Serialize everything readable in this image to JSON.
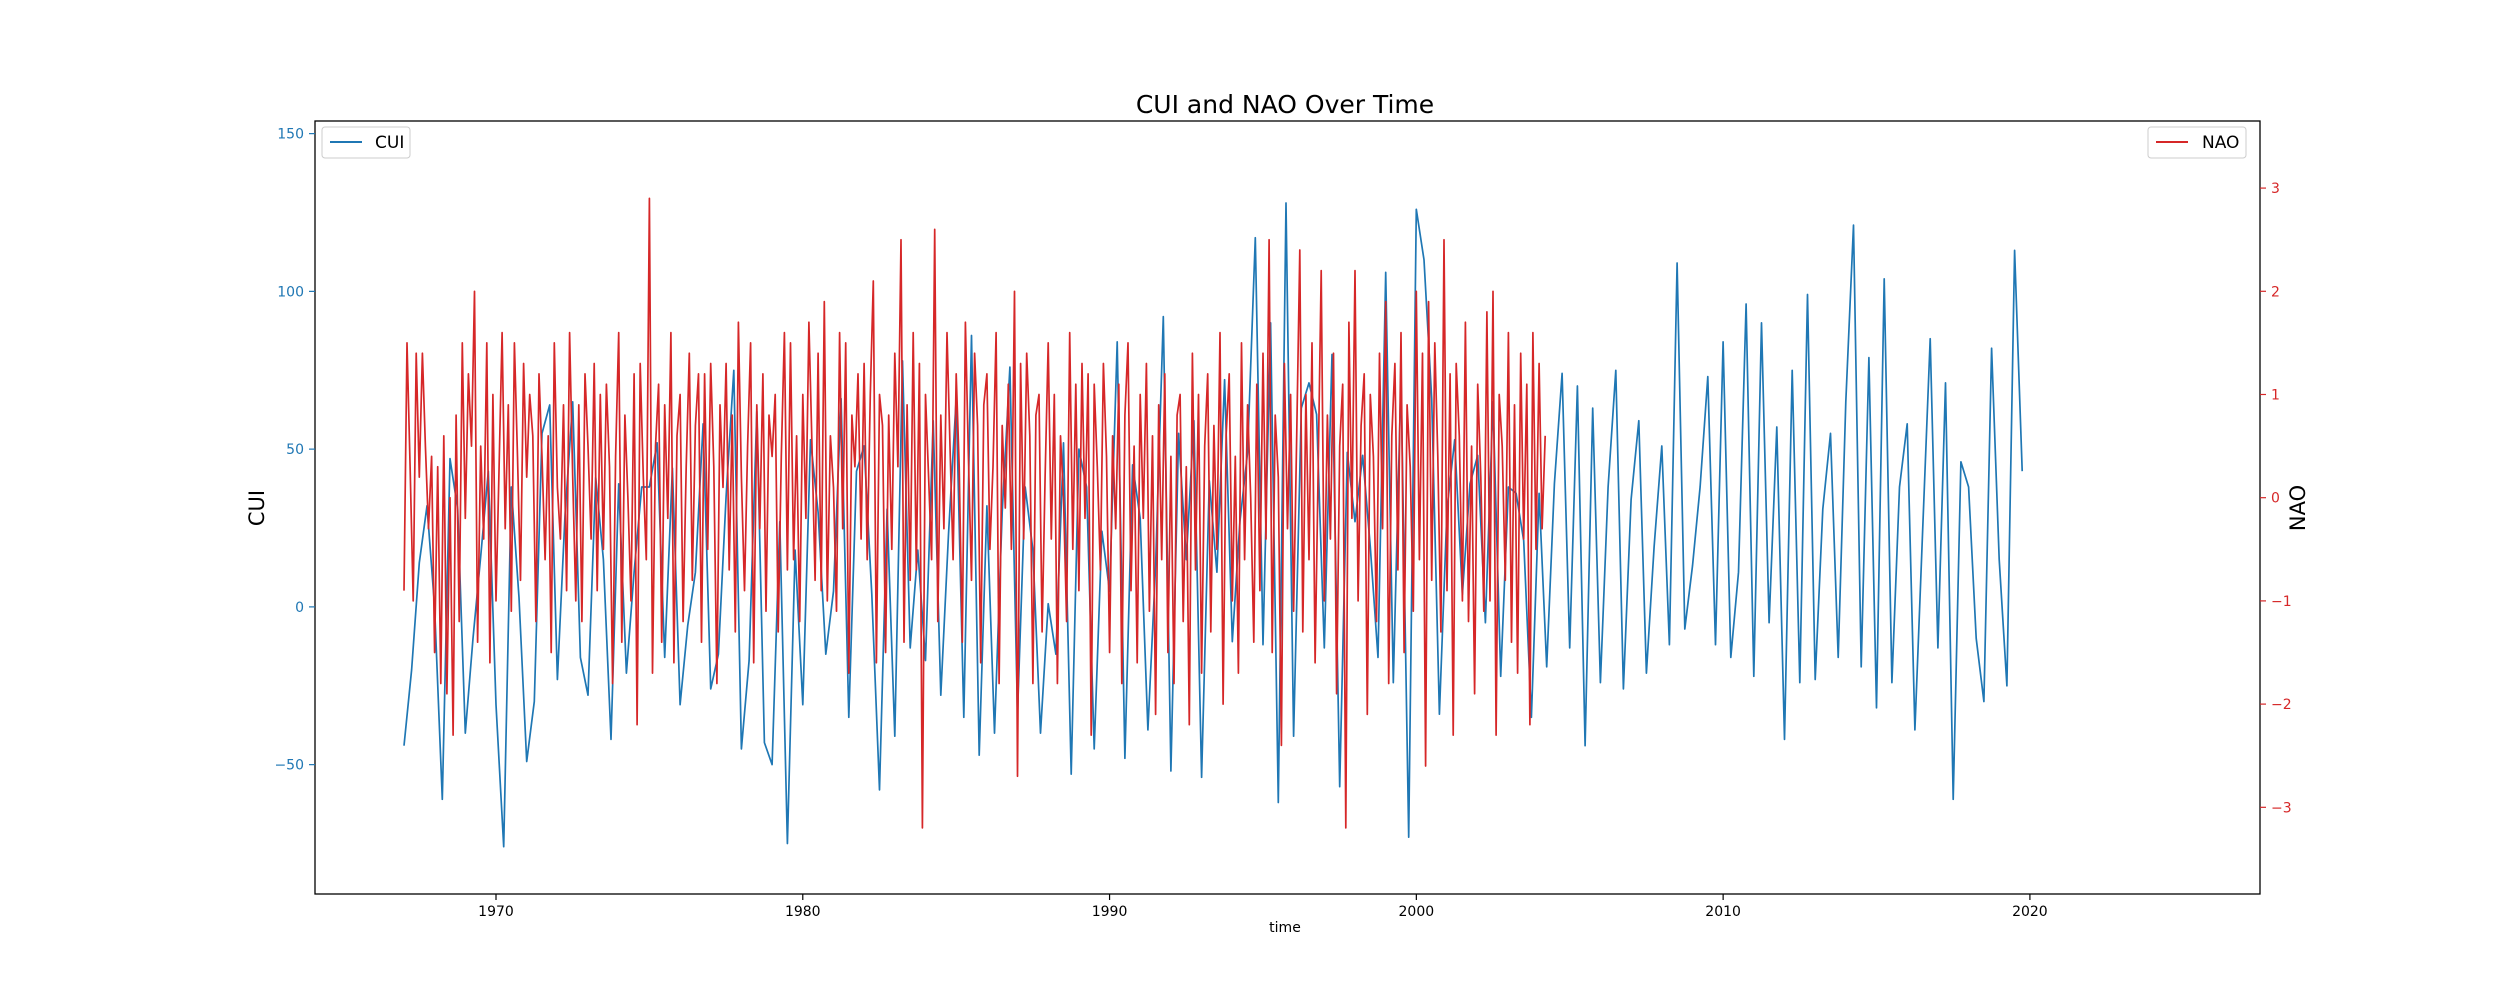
{
  "chart_data": {
    "type": "line",
    "title": "CUI and NAO Over Time",
    "xlabel": "time",
    "x_range": [
      1964.1,
      2027.5
    ],
    "x_ticks": [
      "1970",
      "1980",
      "1990",
      "2000",
      "2010",
      "2020"
    ],
    "left_axis": {
      "label": "CUI",
      "color": "#1f77b4",
      "ylim": [
        -91,
        154
      ],
      "ticks": [
        "150",
        "100",
        "50",
        "0",
        "−50"
      ]
    },
    "right_axis": {
      "label": "NAO",
      "color": "#d62728",
      "ylim": [
        -3.84,
        3.65
      ],
      "ticks": [
        "3",
        "2",
        "1",
        "0",
        "−1",
        "−2",
        "−3"
      ]
    },
    "legend": {
      "left": {
        "label": "CUI",
        "placement": "upper-left"
      },
      "right": {
        "label": "NAO",
        "placement": "upper-right"
      }
    },
    "series": [
      {
        "name": "CUI",
        "axis": "left",
        "color": "#1f77b4",
        "x_start": 1967.0,
        "x_step": 0.25,
        "values": [
          -44,
          -20,
          14,
          32,
          0,
          -61,
          47,
          31,
          -40,
          -10,
          16,
          43,
          -31,
          -76,
          38,
          3,
          -49,
          -30,
          55,
          64,
          -23,
          29,
          65,
          -16,
          -28,
          41,
          15,
          -42,
          39,
          -21,
          11,
          38,
          38,
          52,
          -16,
          44,
          -31,
          -6,
          11,
          58,
          -26,
          -15,
          35,
          75,
          -45,
          -17,
          62,
          -43,
          -50,
          27,
          -75,
          18,
          -31,
          53,
          30,
          -15,
          5,
          66,
          -35,
          43,
          51,
          4,
          -58,
          31,
          -41,
          78,
          -13,
          18,
          -17,
          59,
          -28,
          23,
          66,
          -35,
          86,
          -47,
          32,
          -40,
          30,
          76,
          -34,
          38,
          18,
          -40,
          1,
          -15,
          52,
          -53,
          50,
          38,
          -45,
          24,
          5,
          84,
          -48,
          45,
          28,
          -39,
          13,
          92,
          -52,
          55,
          15,
          59,
          -54,
          40,
          11,
          72,
          -11,
          27,
          49,
          117,
          -12,
          90,
          -62,
          128,
          -41,
          63,
          71,
          61,
          -13,
          80,
          -57,
          49,
          27,
          48,
          19,
          -16,
          106,
          -24,
          73,
          -73,
          126,
          110,
          66,
          -34,
          31,
          53,
          4,
          39,
          48,
          -5,
          65,
          -22,
          38,
          36,
          21,
          -35,
          36,
          -19,
          39,
          74,
          -13,
          70,
          -44,
          63,
          -24,
          38,
          75,
          -26,
          34,
          59,
          -21,
          19,
          51,
          -12,
          109,
          -7,
          13,
          38,
          73,
          -12,
          84,
          -16,
          11,
          96,
          -22,
          90,
          -5,
          57,
          -42,
          75,
          -24,
          99,
          -23,
          31,
          55,
          -16,
          65,
          121,
          -19,
          79,
          -32,
          104,
          -24,
          38,
          58,
          -39,
          23,
          85,
          -13,
          71,
          -61,
          46,
          38,
          -10,
          -30,
          82,
          15,
          -25,
          113,
          43
        ]
      },
      {
        "name": "NAO",
        "axis": "right",
        "color": "#d62728",
        "x_start": 1967.0,
        "x_step": 0.1,
        "values": [
          -0.9,
          1.5,
          0.3,
          -1.0,
          1.4,
          0.2,
          1.4,
          0.5,
          -0.3,
          0.4,
          -1.5,
          0.3,
          -1.8,
          0.6,
          -1.9,
          0.0,
          -2.3,
          0.8,
          -1.2,
          1.5,
          -0.2,
          1.2,
          0.5,
          2.0,
          -1.4,
          0.5,
          -0.4,
          1.5,
          -1.6,
          1.0,
          -1.0,
          0.3,
          1.6,
          -0.3,
          0.9,
          -1.1,
          1.5,
          0.4,
          -0.8,
          1.3,
          0.2,
          1.0,
          0.6,
          -1.2,
          1.2,
          0.4,
          -0.6,
          0.6,
          -1.5,
          1.5,
          0.1,
          -0.4,
          0.9,
          -0.9,
          1.6,
          0.2,
          -1.0,
          0.9,
          -1.2,
          1.2,
          0.5,
          -0.4,
          1.3,
          -0.9,
          1.0,
          -0.5,
          1.1,
          0.3,
          -1.8,
          0.4,
          1.6,
          -1.4,
          0.8,
          0.0,
          -1.0,
          1.2,
          -2.2,
          1.3,
          0.2,
          -0.6,
          2.9,
          -1.7,
          0.5,
          1.1,
          -1.4,
          0.9,
          -0.2,
          1.6,
          -1.6,
          0.6,
          1.0,
          -1.2,
          0.3,
          1.4,
          -0.8,
          0.7,
          1.2,
          -1.4,
          1.2,
          -0.5,
          1.3,
          0.3,
          -1.8,
          0.9,
          0.1,
          1.3,
          -0.7,
          0.8,
          -1.3,
          1.7,
          0.2,
          -0.9,
          0.5,
          1.5,
          -1.6,
          0.9,
          -0.3,
          1.2,
          -1.1,
          0.8,
          0.4,
          1.0,
          -1.3,
          0.4,
          1.6,
          -0.7,
          1.5,
          -0.6,
          0.6,
          -1.2,
          1.0,
          -0.2,
          1.7,
          0.5,
          -0.8,
          1.4,
          -0.9,
          1.9,
          -1.0,
          0.6,
          0.1,
          -1.1,
          1.6,
          -0.3,
          1.5,
          -1.7,
          0.8,
          0.3,
          1.2,
          -0.4,
          1.3,
          -0.6,
          1.0,
          2.1,
          -1.6,
          1.0,
          0.7,
          -1.5,
          0.8,
          -0.5,
          1.4,
          0.3,
          2.5,
          -1.4,
          0.9,
          -0.8,
          1.6,
          -0.7,
          1.3,
          -3.2,
          1.0,
          0.2,
          -0.6,
          2.6,
          -1.2,
          0.8,
          -0.3,
          1.6,
          0.5,
          -0.6,
          1.2,
          0.3,
          -1.4,
          1.7,
          0.4,
          -0.8,
          1.4,
          0.7,
          -1.6,
          0.9,
          1.2,
          -0.5,
          0.3,
          1.6,
          -1.8,
          0.7,
          -0.1,
          1.1,
          -0.5,
          2.0,
          -2.7,
          1.3,
          -0.4,
          1.4,
          0.6,
          -1.8,
          0.8,
          1.0,
          -1.3,
          0.2,
          1.5,
          -0.4,
          1.0,
          -1.8,
          0.6,
          0.0,
          -1.2,
          1.6,
          -0.5,
          1.1,
          -0.9,
          1.3,
          -0.2,
          1.2,
          -2.3,
          1.1,
          0.3,
          -0.7,
          1.3,
          0.4,
          -1.5,
          0.6,
          -0.3,
          1.1,
          -1.8,
          0.8,
          1.5,
          -0.9,
          0.5,
          -1.6,
          1.0,
          -0.2,
          1.3,
          -1.1,
          0.6,
          -2.1,
          0.9,
          -0.6,
          1.2,
          -1.5,
          0.4,
          -1.8,
          0.8,
          1.0,
          -1.2,
          0.3,
          -2.2,
          1.4,
          -0.7,
          1.0,
          -1.7,
          0.5,
          1.2,
          -1.3,
          0.7,
          -0.5,
          1.6,
          -2.0,
          0.6,
          1.2,
          -1.0,
          0.4,
          -1.7,
          1.5,
          -0.6,
          0.9,
          0.0,
          -1.4,
          1.1,
          -0.9,
          1.4,
          -0.4,
          2.5,
          -1.5,
          0.8,
          0.2,
          -2.4,
          1.3,
          -0.3,
          1.0,
          -1.1,
          0.6,
          2.4,
          -1.3,
          1.0,
          -0.6,
          1.5,
          -1.6,
          0.3,
          2.2,
          -1.0,
          0.8,
          -0.4,
          1.4,
          -1.9,
          0.5,
          1.1,
          -3.2,
          1.7,
          -0.2,
          2.2,
          -1.0,
          0.7,
          1.2,
          -2.1,
          1.0,
          0.4,
          -1.2,
          1.4,
          -0.3,
          1.9,
          -1.8,
          0.6,
          1.3,
          -0.7,
          1.6,
          -1.5,
          0.9,
          0.3,
          -1.1,
          2.0,
          -0.6,
          1.4,
          -2.6,
          1.9,
          -0.8,
          1.5,
          0.4,
          -1.3,
          2.5,
          -0.9,
          1.2,
          -2.3,
          1.3,
          0.6,
          -1.0,
          1.7,
          -1.2,
          0.5,
          -1.9,
          1.1,
          0.2,
          -1.1,
          1.8,
          -1.0,
          2.0,
          -2.3,
          1.0,
          0.5,
          -0.8,
          1.6,
          -1.4,
          0.9,
          -1.7,
          1.4,
          -0.4,
          1.1,
          -2.2,
          1.6,
          -0.5,
          1.3,
          -0.3,
          0.6
        ]
      }
    ]
  }
}
